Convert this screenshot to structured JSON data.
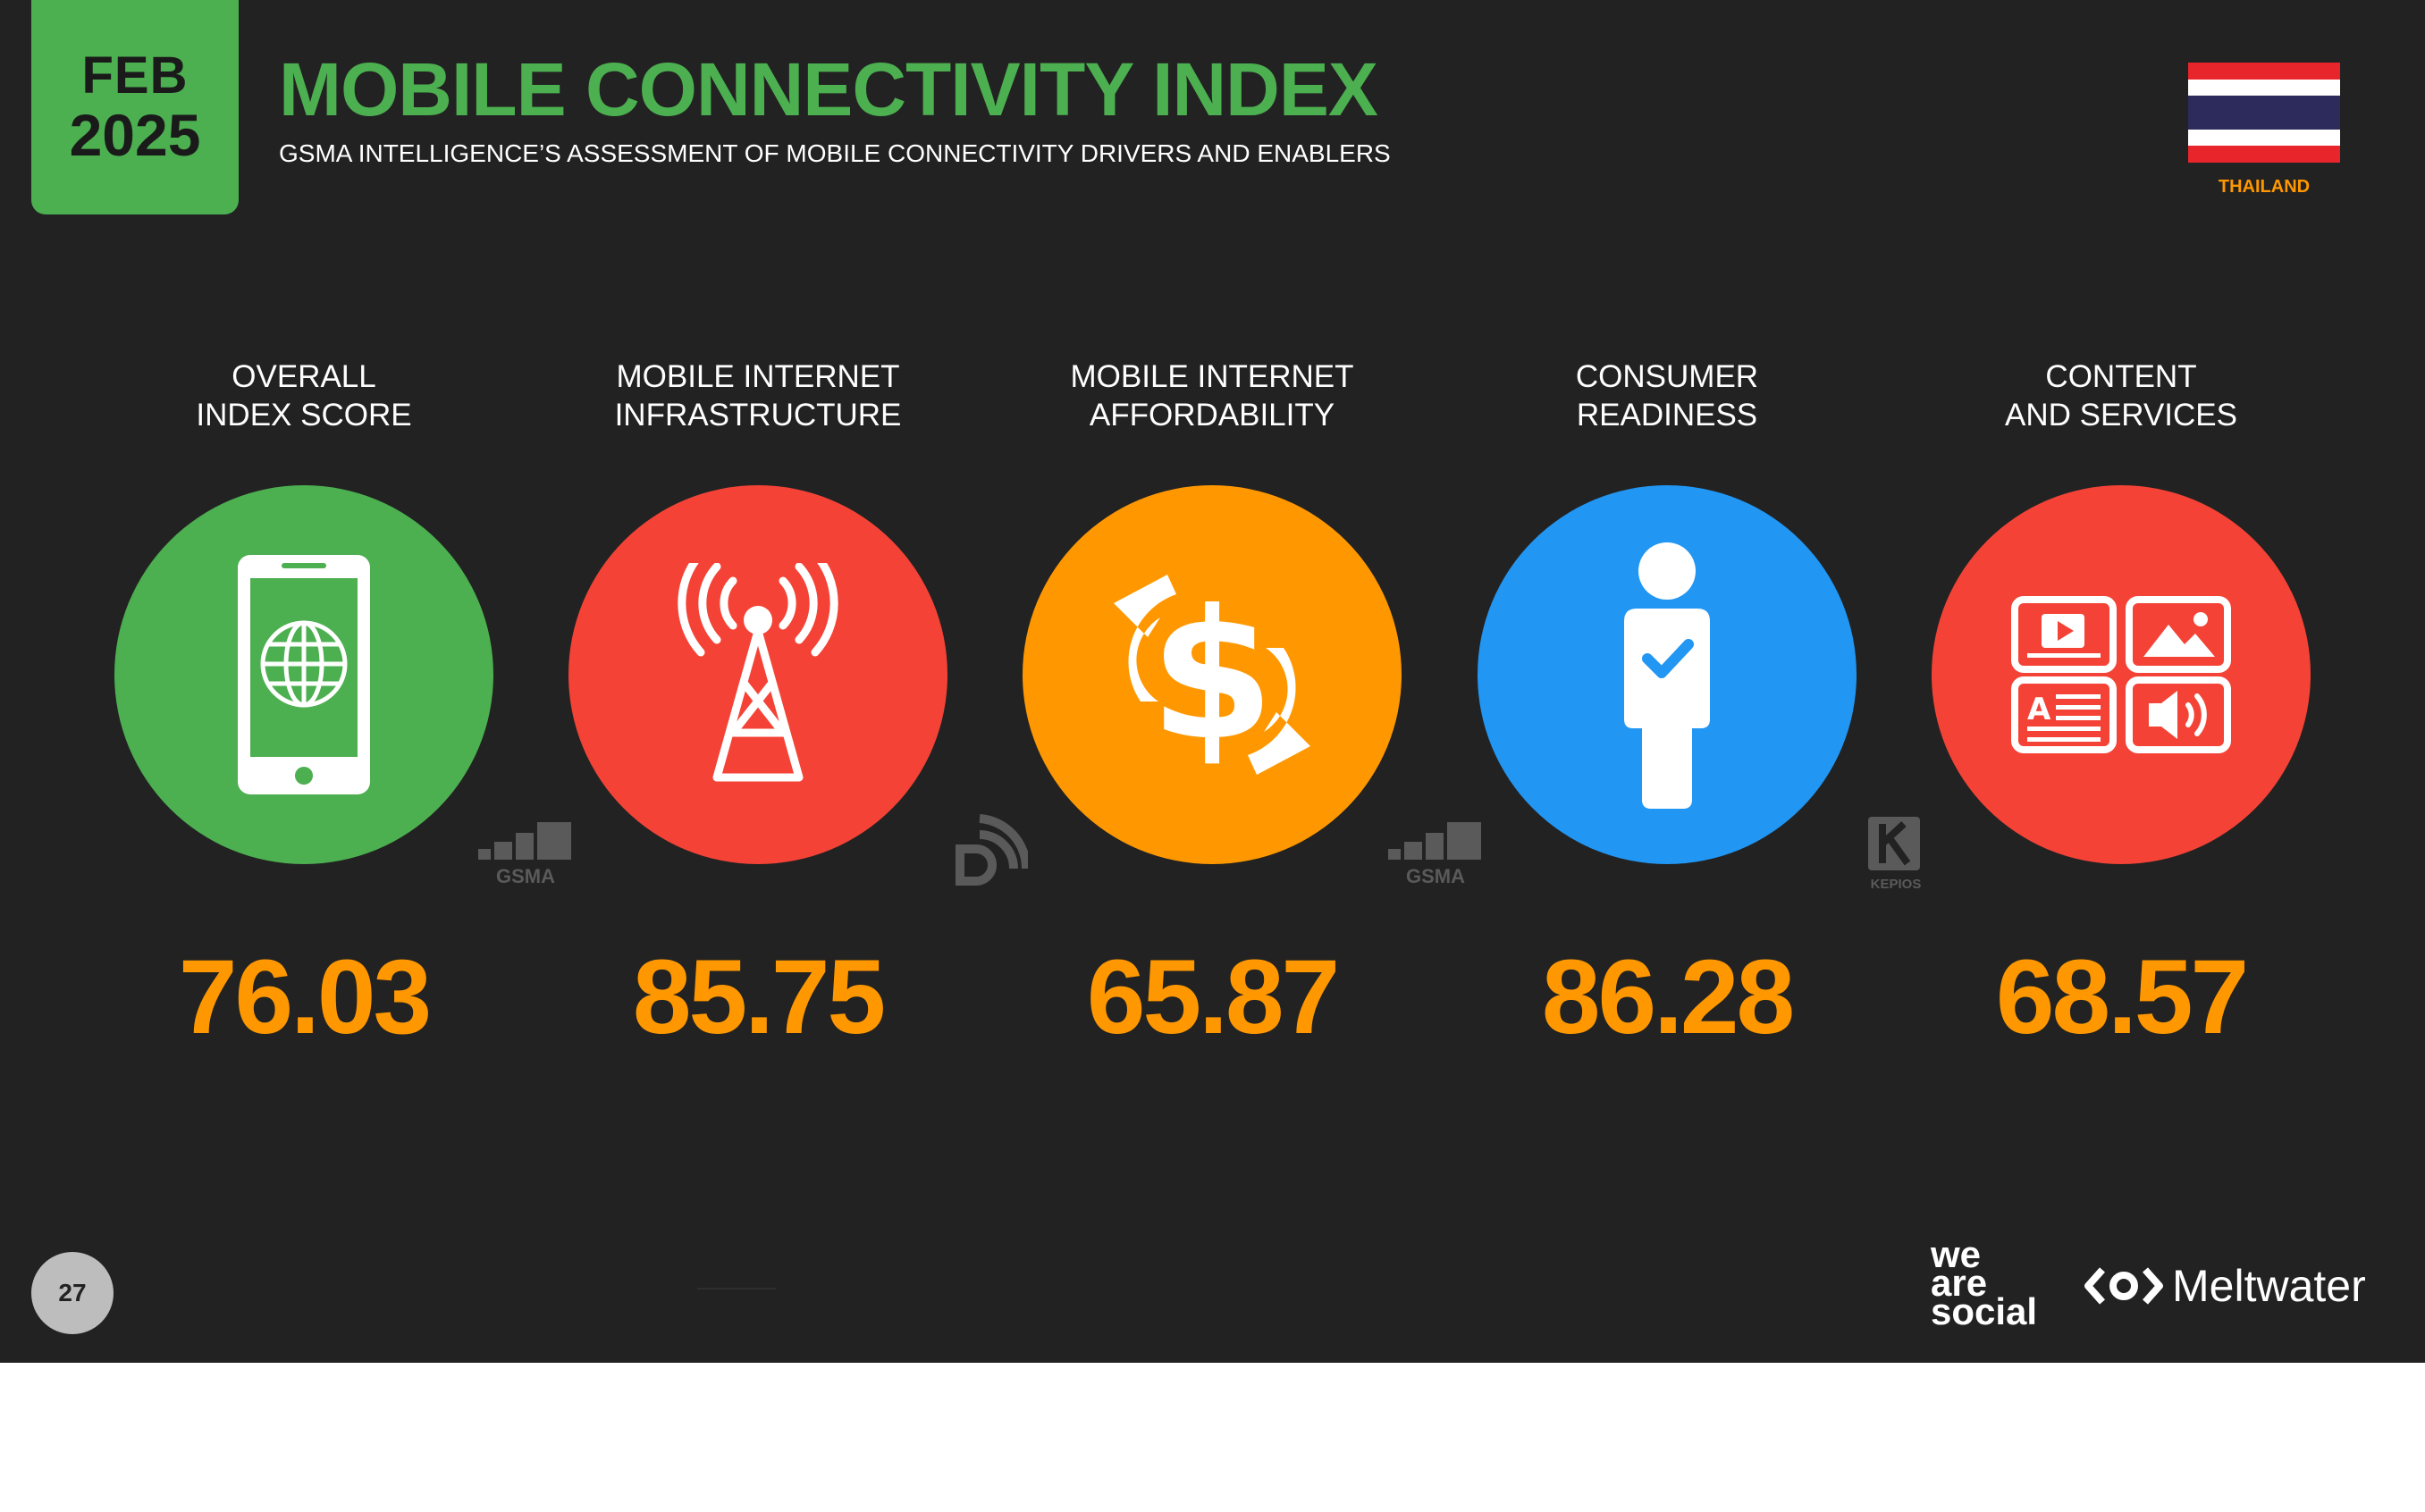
{
  "header": {
    "month": "FEB",
    "year": "2025",
    "title": "MOBILE CONNECTIVITY INDEX",
    "subtitle": "GSMA INTELLIGENCE’S ASSESSMENT OF MOBILE CONNECTIVITY DRIVERS AND ENABLERS"
  },
  "country": {
    "name": "THAILAND",
    "flag_colors": [
      "#e8252a",
      "#ffffff",
      "#2d2a5c",
      "#ffffff",
      "#e8252a"
    ]
  },
  "metrics": [
    {
      "label": "OVERALL\nINDEX SCORE",
      "value": "76.03",
      "color": "#4caf50",
      "icon": "smartphone-globe-icon"
    },
    {
      "label": "MOBILE INTERNET\nINFRASTRUCTURE",
      "value": "85.75",
      "color": "#f44336",
      "icon": "cell-tower-icon"
    },
    {
      "label": "MOBILE INTERNET\nAFFORDABILITY",
      "value": "65.87",
      "color": "#ff9800",
      "icon": "dollar-exchange-icon"
    },
    {
      "label": "CONSUMER\nREADINESS",
      "value": "86.28",
      "color": "#2196f3",
      "icon": "person-check-icon"
    },
    {
      "label": "CONTENT\nAND SERVICES",
      "value": "68.57",
      "color": "#f44336",
      "icon": "content-grid-icon"
    }
  ],
  "sources": [
    "GSMA",
    "GSMA",
    "KEPIOS"
  ],
  "footer": {
    "page_number": "27",
    "brand_left": [
      "we",
      "are",
      "social"
    ],
    "brand_right": "Meltwater"
  },
  "colors": {
    "background": "#222222",
    "accent_green": "#4caf50",
    "value_orange": "#ff9800"
  }
}
